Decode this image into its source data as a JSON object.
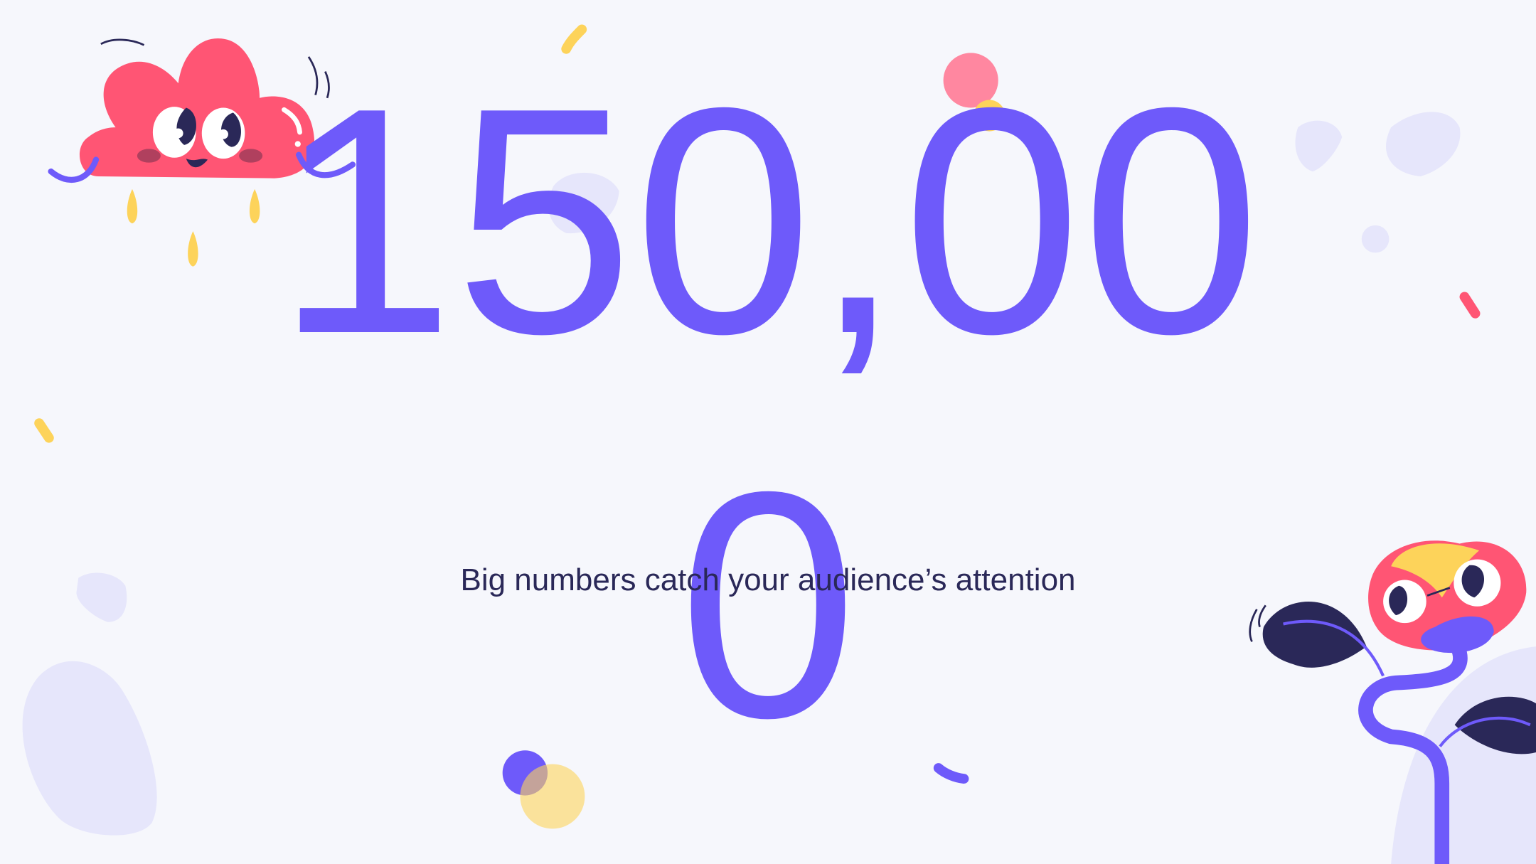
{
  "slide": {
    "big_number": "150,000",
    "subtitle": "Big numbers catch your audience’s attention"
  },
  "colors": {
    "background": "#f6f7fc",
    "accent": "#6e5afa",
    "text": "#2a2858",
    "pink": "#ff5574",
    "yellow": "#fdd35a",
    "blob": "#e6e6fb"
  },
  "illustrations": [
    "cloud-character",
    "sprout-character",
    "confetti"
  ]
}
